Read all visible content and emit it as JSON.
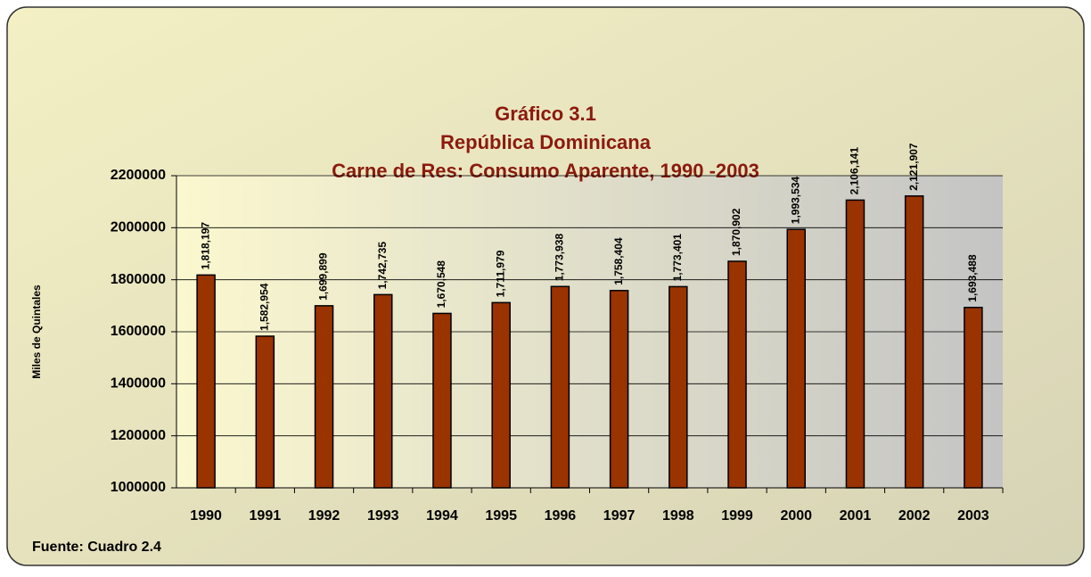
{
  "chart_data": {
    "type": "bar",
    "title": [
      "Gráfico 3.1",
      "República Dominicana",
      "Carne de Res: Consumo Aparente, 1990 -2003"
    ],
    "y_label": "Miles de Quintales",
    "source": "Fuente: Cuadro 2.4",
    "categories": [
      "1990",
      "1991",
      "1992",
      "1993",
      "1994",
      "1995",
      "1996",
      "1997",
      "1998",
      "1999",
      "2000",
      "2001",
      "2002",
      "2003"
    ],
    "values": [
      1818197,
      1582954,
      1699899,
      1742735,
      1670548,
      1711979,
      1773938,
      1758404,
      1773401,
      1870902,
      1993534,
      2106141,
      2121907,
      1693488
    ],
    "value_labels": [
      "1,818,197",
      "1,582,954",
      "1,699,899",
      "1,742,735",
      "1,670,548",
      "1,711,979",
      "1,773,938",
      "1,758,404",
      "1,773,401",
      "1,870,902",
      "1,993,534",
      "2,106,141",
      "2,121,907",
      "1,693,488"
    ],
    "color": "#993300",
    "ylim": [
      1000000,
      2200000
    ],
    "yticks": [
      1000000,
      1200000,
      1400000,
      1600000,
      1800000,
      2000000,
      2200000
    ],
    "grid": true
  }
}
